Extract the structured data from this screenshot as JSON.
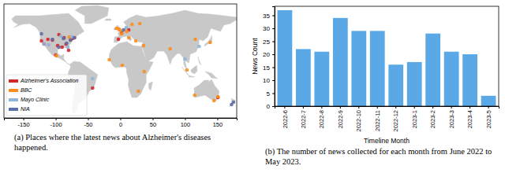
{
  "chart_data": [
    {
      "type": "scatter",
      "caption": "(a) Places where the latest news about Alzheimer's diseases happened.",
      "xlim": [
        -180,
        180
      ],
      "xticks": [
        -150,
        -100,
        -50,
        0,
        50,
        100,
        150
      ],
      "ylim": [
        -60,
        85
      ],
      "tick_labels": "x",
      "legend": "lower left",
      "marker": "circle",
      "series": [
        {
          "name": "Alzheimer's Association",
          "color": "#d62728",
          "x": [
            -122,
            -118,
            -112,
            -105,
            -97,
            -90,
            -87,
            -84,
            -80,
            -77,
            -74,
            -71,
            -95,
            -100,
            -43,
            2,
            13,
            151,
            -3
          ],
          "y": [
            38,
            34,
            40,
            39,
            32,
            30,
            42,
            34,
            26,
            39,
            41,
            42,
            46,
            20,
            -22,
            48,
            52,
            -34,
            40
          ]
        },
        {
          "name": "BBC",
          "color": "#ff8c1a",
          "x": [
            -0.1,
            -2,
            -6,
            2,
            10,
            13,
            18,
            24,
            37,
            3,
            77,
            103,
            116,
            139,
            28,
            36,
            -17,
            151,
            145,
            115,
            -99,
            -79,
            30
          ],
          "y": [
            51.5,
            53,
            54,
            47,
            50,
            42,
            59,
            38,
            -1,
            7,
            28,
            1,
            40,
            36,
            -26,
            32,
            14,
            -33,
            -38,
            -31,
            19,
            43,
            60
          ]
        },
        {
          "name": "Mayo Clinic",
          "color": "#8fb3d9",
          "x": [
            -92,
            -111,
            -81,
            -118,
            -75,
            9,
            100,
            -43,
            122
          ],
          "y": [
            44,
            33,
            30,
            34,
            43,
            55,
            15,
            -10,
            31
          ]
        },
        {
          "name": "NIA",
          "color": "#5b6fa8",
          "x": [
            -77,
            -122,
            -88,
            -95,
            -71,
            175,
            172,
            5,
            -105,
            -83
          ],
          "y": [
            39,
            47,
            41,
            30,
            42,
            -40,
            -43,
            52,
            40,
            35
          ]
        }
      ]
    },
    {
      "type": "bar",
      "caption": "(b) The number of news collected for each month from June 2022 to May 2023.",
      "x_label": "Timeline Month",
      "y_label": "News Count",
      "categories": [
        "2022-6",
        "2022-7",
        "2022-8",
        "2022-9",
        "2022-10",
        "2022-11",
        "2022-12",
        "2023-1",
        "2023-2",
        "2023-3",
        "2023-4",
        "2023-5"
      ],
      "values": [
        37,
        22,
        21,
        34,
        29,
        29,
        16,
        17,
        28,
        21,
        20,
        4
      ],
      "color": "#5aa9e6",
      "ylim": [
        0,
        38.5
      ],
      "yticks": [
        0,
        5,
        10,
        15,
        20,
        25,
        30,
        35
      ],
      "grid": false
    }
  ]
}
